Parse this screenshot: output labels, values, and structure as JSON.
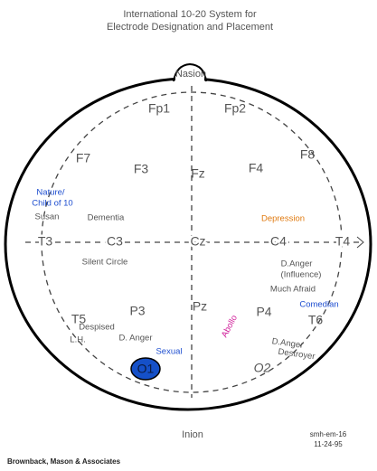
{
  "title": [
    "International 10-20 System for",
    "Electrode Designation and Placement"
  ],
  "landmarks": {
    "nasion": "Nasion",
    "inion": "Inion"
  },
  "electrodes": {
    "fp1": "Fp1",
    "fp2": "Fp2",
    "f7": "F7",
    "f3": "F3",
    "fz": "Fz",
    "f4": "F4",
    "f8": "F8",
    "t3": "T3",
    "c3": "C3",
    "cz": "Cz",
    "c4": "C4",
    "t4": "T4",
    "t5": "T5",
    "p3": "P3",
    "pz": "Pz",
    "p4": "P4",
    "t6": "T6",
    "o1": "O1",
    "o2": "O2"
  },
  "annotations": {
    "nature": [
      "Nature/",
      "Child of 10"
    ],
    "susan": "Susan",
    "dementia": "Dementia",
    "depression": "Depression",
    "silent_circle": "Silent Circle",
    "d_anger_influence": [
      "D.Anger",
      "(Influence)"
    ],
    "much_afraid": "Much Afraid",
    "comedian": "Comedian",
    "despised": "Despised",
    "d_anger": "D. Anger",
    "lh": "L.H.",
    "abollo": "Abollo",
    "sexual": "Sexual",
    "d_anger_destroyer": [
      "D.Anger",
      "Destroyer"
    ]
  },
  "footer": {
    "code": [
      "smh-em-16",
      "11-24-95"
    ],
    "credit": "Brownback, Mason & Associates"
  }
}
